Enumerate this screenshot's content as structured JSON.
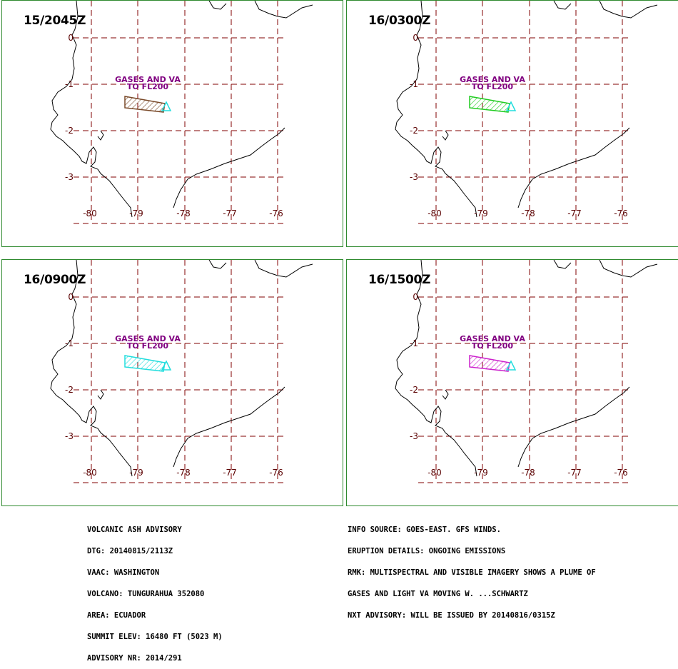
{
  "panels": [
    {
      "time": "15/2045Z",
      "plume_color": "#7a4a2a"
    },
    {
      "time": "16/0300Z",
      "plume_color": "#22cc22"
    },
    {
      "time": "16/0900Z",
      "plume_color": "#22dddd"
    },
    {
      "time": "16/1500Z",
      "plume_color": "#cc22cc"
    }
  ],
  "map": {
    "lat_labels": [
      "0",
      "-1",
      "-2",
      "-3"
    ],
    "lon_labels": [
      "-80",
      "-79",
      "-78",
      "-77",
      "-76"
    ],
    "plume_label_line1": "GASES AND VA",
    "plume_label_line2": "TO FL200",
    "grid_color": "#800000",
    "coast_color": "#000000",
    "volcano_color": "#22dddd"
  },
  "advisory_left": [
    "VOLCANIC ASH ADVISORY",
    "DTG: 20140815/2113Z",
    "VAAC: WASHINGTON",
    "VOLCANO: TUNGURAHUA 352080",
    "AREA: ECUADOR",
    "SUMMIT ELEV: 16480 FT (5023 M)",
    "ADVISORY NR: 2014/291"
  ],
  "advisory_right": [
    "INFO SOURCE: GOES-EAST. GFS WINDS.",
    "ERUPTION DETAILS: ONGOING EMISSIONS",
    "RMK: MULTISPECTRAL AND VISIBLE IMAGERY SHOWS A PLUME OF",
    "GASES AND LIGHT VA MOVING W. ...SCHWARTZ",
    "NXT ADVISORY: WILL BE ISSUED BY 20140816/0315Z"
  ]
}
